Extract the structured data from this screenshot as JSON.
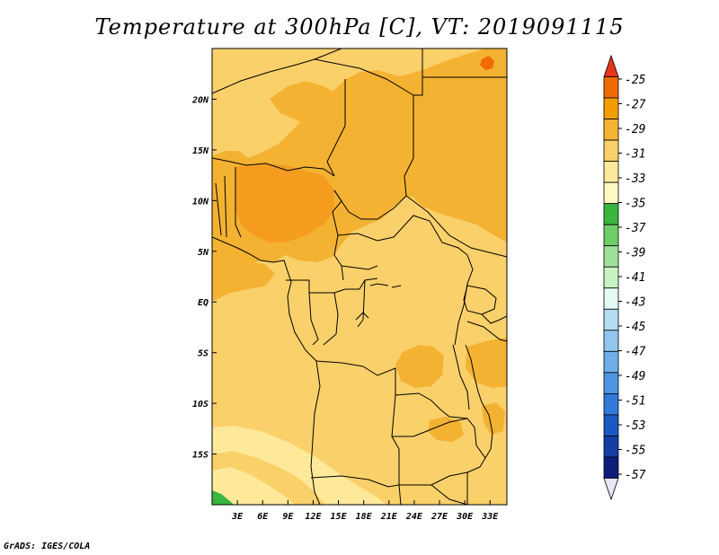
{
  "chart_data": {
    "type": "heatmap",
    "title": "Temperature at 300hPa [C], VT: 2019091115",
    "variable": "Temperature at 300hPa",
    "units": "C",
    "valid_time": "2019091115",
    "x_axis": {
      "label": "",
      "ticks": [
        "3E",
        "6E",
        "9E",
        "12E",
        "15E",
        "18E",
        "21E",
        "24E",
        "27E",
        "30E",
        "33E"
      ],
      "tick_values": [
        3,
        6,
        9,
        12,
        15,
        18,
        21,
        24,
        27,
        30,
        33
      ],
      "range": [
        0,
        35
      ]
    },
    "y_axis": {
      "label": "",
      "ticks": [
        "20N",
        "15N",
        "10N",
        "5N",
        "EQ",
        "5S",
        "10S",
        "15S"
      ],
      "tick_values": [
        20,
        15,
        10,
        5,
        0,
        -5,
        -10,
        -15
      ],
      "range": [
        -20,
        25
      ]
    },
    "colorbar": {
      "labels": [
        "-25",
        "-27",
        "-29",
        "-31",
        "-33",
        "-35",
        "-37",
        "-39",
        "-41",
        "-43",
        "-45",
        "-47",
        "-49",
        "-51",
        "-53",
        "-55",
        "-57"
      ],
      "colors": [
        "#e5361c",
        "#f06b00",
        "#f49d00",
        "#f5b532",
        "#fad06a",
        "#fee99a",
        "#fff8bf",
        "#3ab540",
        "#6fce6a",
        "#9fe19a",
        "#c7f2c2",
        "#e4fbf5",
        "#b4dcf3",
        "#91c6ee",
        "#6eafea",
        "#4e95e2",
        "#3278d9",
        "#1d58c2",
        "#133ea2",
        "#0e1d7a",
        "#e7e7f6"
      ]
    },
    "fields": {
      "top_left_band": "-33 to -31",
      "north_central_belt": "-31 to -29",
      "central_basin": "-33 to -31",
      "southwest_band": "-35 to -33",
      "southwest_corner": "-37 to -35"
    }
  },
  "footer": {
    "credit": "GrADS: IGES/COLA"
  }
}
